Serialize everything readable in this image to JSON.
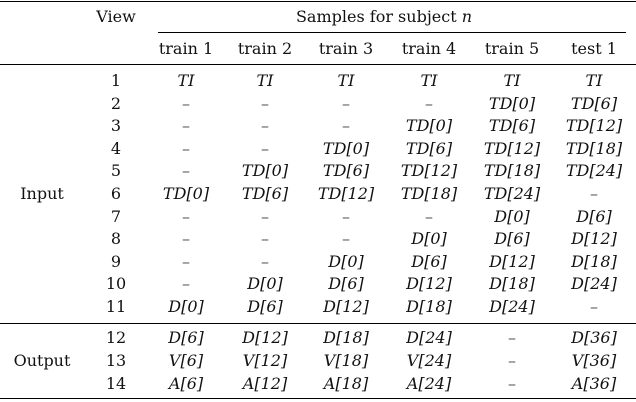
{
  "header": {
    "view": "View",
    "samples": "Samples for subject ",
    "samples_var": "n",
    "columns": [
      "train 1",
      "train 2",
      "train 3",
      "train 4",
      "train 5",
      "test 1"
    ]
  },
  "groups": {
    "input": "Input",
    "output": "Output"
  },
  "input_rows": [
    {
      "view": "1",
      "cells": [
        "TI",
        "TI",
        "TI",
        "TI",
        "TI",
        "TI"
      ]
    },
    {
      "view": "2",
      "cells": [
        "–",
        "–",
        "–",
        "–",
        "TD[0]",
        "TD[6]"
      ]
    },
    {
      "view": "3",
      "cells": [
        "–",
        "–",
        "–",
        "TD[0]",
        "TD[6]",
        "TD[12]"
      ]
    },
    {
      "view": "4",
      "cells": [
        "–",
        "–",
        "TD[0]",
        "TD[6]",
        "TD[12]",
        "TD[18]"
      ]
    },
    {
      "view": "5",
      "cells": [
        "–",
        "TD[0]",
        "TD[6]",
        "TD[12]",
        "TD[18]",
        "TD[24]"
      ]
    },
    {
      "view": "6",
      "cells": [
        "TD[0]",
        "TD[6]",
        "TD[12]",
        "TD[18]",
        "TD[24]",
        "–"
      ]
    },
    {
      "view": "7",
      "cells": [
        "–",
        "–",
        "–",
        "–",
        "D[0]",
        "D[6]"
      ]
    },
    {
      "view": "8",
      "cells": [
        "–",
        "–",
        "–",
        "D[0]",
        "D[6]",
        "D[12]"
      ]
    },
    {
      "view": "9",
      "cells": [
        "–",
        "–",
        "D[0]",
        "D[6]",
        "D[12]",
        "D[18]"
      ]
    },
    {
      "view": "10",
      "cells": [
        "–",
        "D[0]",
        "D[6]",
        "D[12]",
        "D[18]",
        "D[24]"
      ]
    },
    {
      "view": "11",
      "cells": [
        "D[0]",
        "D[6]",
        "D[12]",
        "D[18]",
        "D[24]",
        "–"
      ]
    }
  ],
  "output_rows": [
    {
      "view": "12",
      "cells": [
        "D[6]",
        "D[12]",
        "D[18]",
        "D[24]",
        "–",
        "D[36]"
      ]
    },
    {
      "view": "13",
      "cells": [
        "V[6]",
        "V[12]",
        "V[18]",
        "V[24]",
        "–",
        "V[36]"
      ]
    },
    {
      "view": "14",
      "cells": [
        "A[6]",
        "A[12]",
        "A[18]",
        "A[24]",
        "–",
        "A[36]"
      ]
    }
  ]
}
